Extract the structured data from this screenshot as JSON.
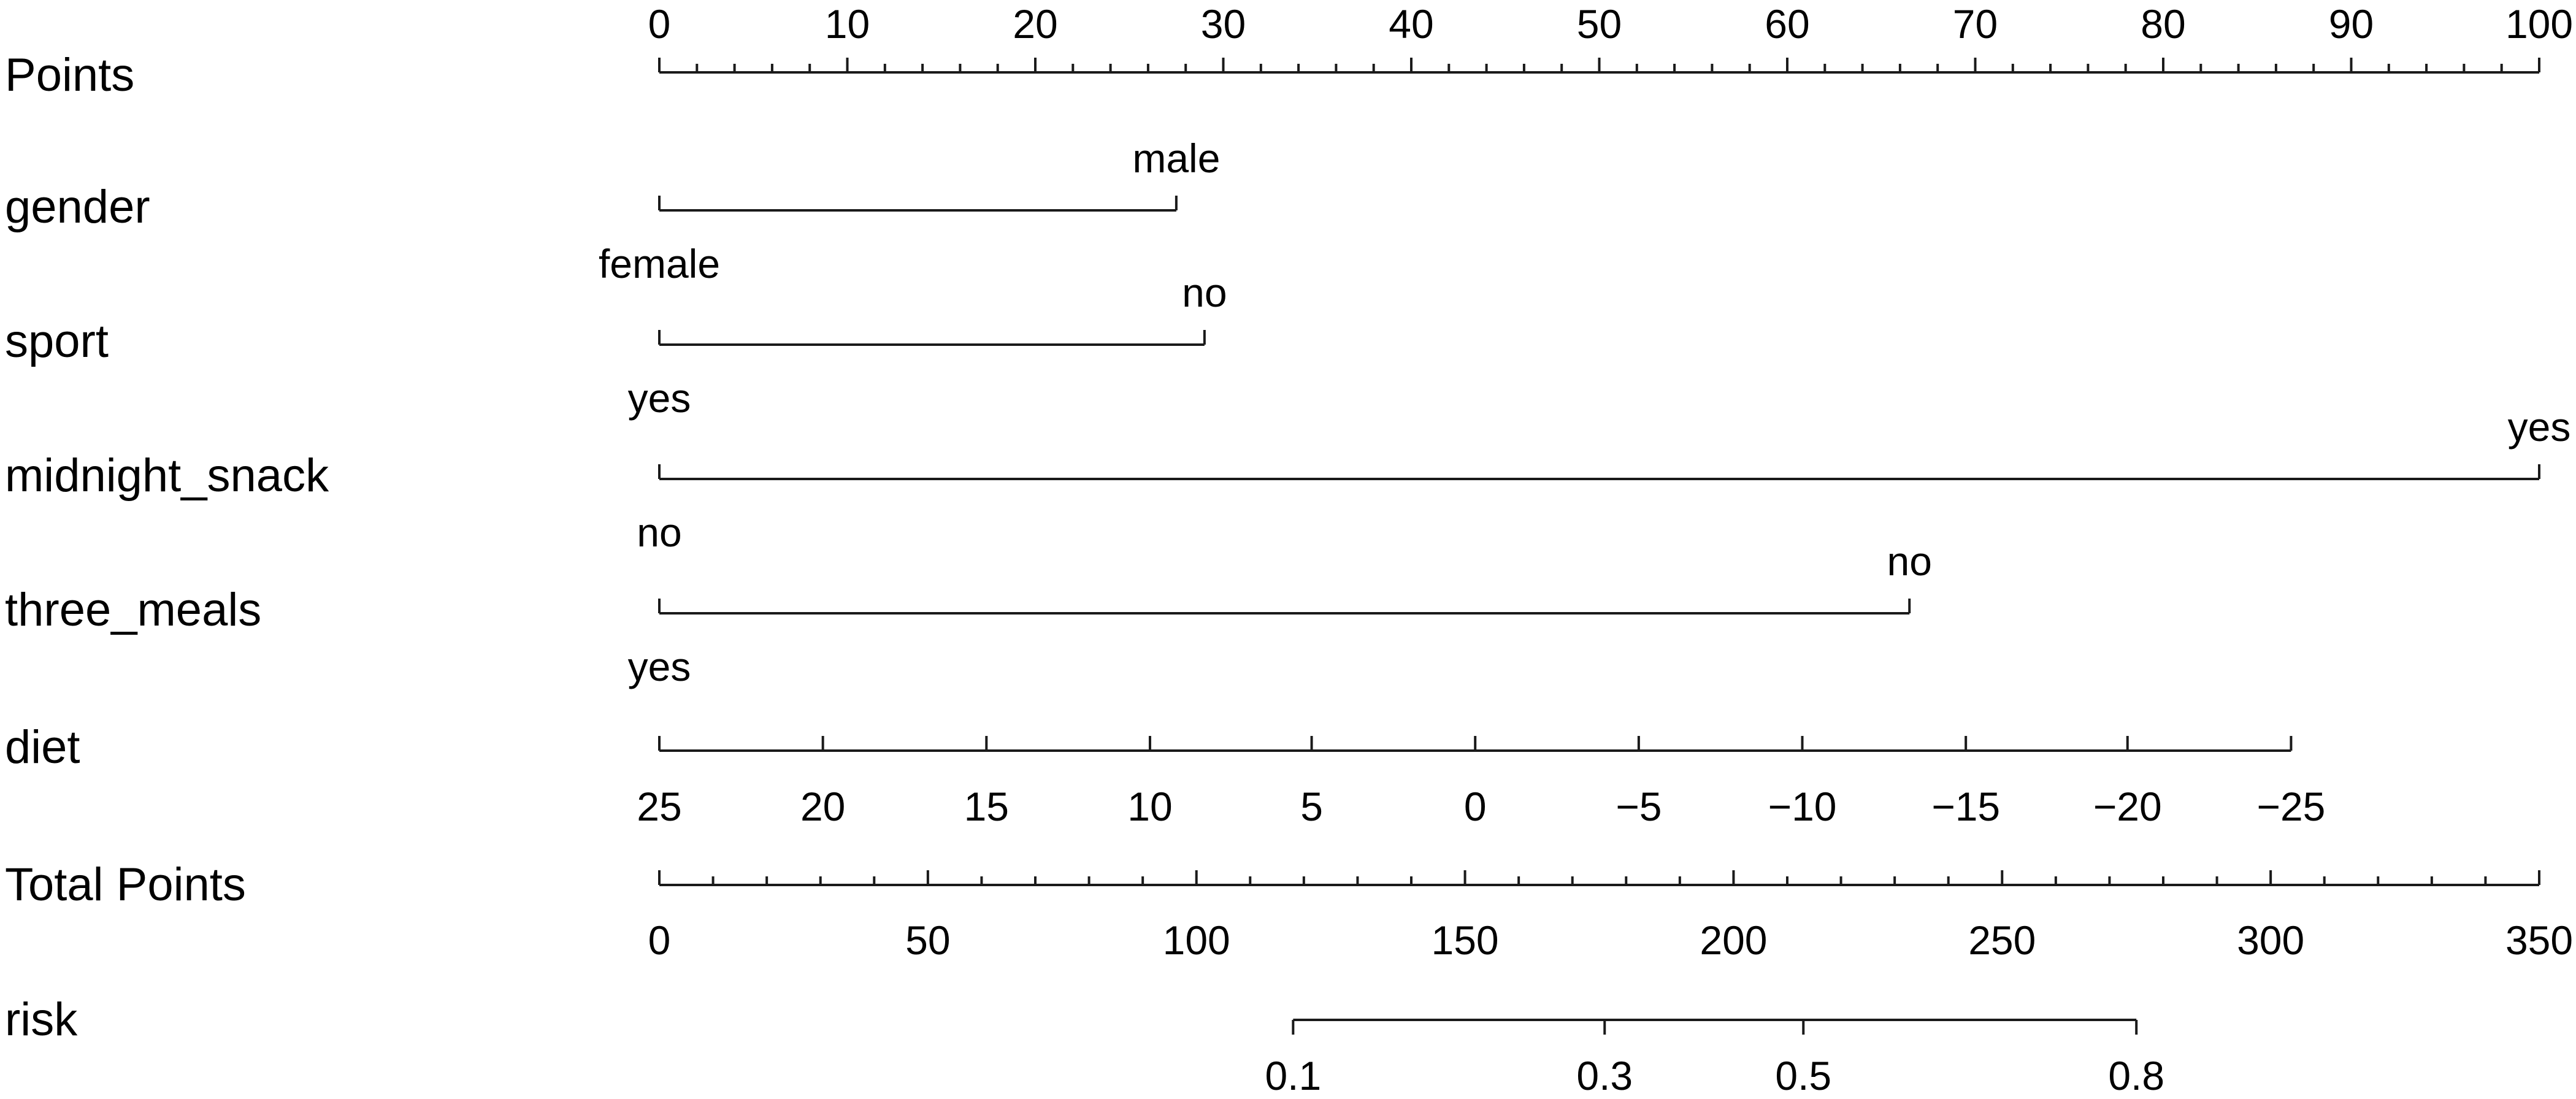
{
  "chart_data": {
    "type": "nomogram",
    "points_scale": {
      "label": "Points",
      "range": [
        0,
        100
      ],
      "ticks": [
        0,
        10,
        20,
        30,
        40,
        50,
        60,
        70,
        80,
        90,
        100
      ],
      "minor_step": 2
    },
    "variables": [
      {
        "name": "gender",
        "levels": [
          {
            "label": "female",
            "points": 0,
            "side": "below"
          },
          {
            "label": "male",
            "points": 27.5,
            "side": "above"
          }
        ]
      },
      {
        "name": "sport",
        "levels": [
          {
            "label": "yes",
            "points": 0,
            "side": "below"
          },
          {
            "label": "no",
            "points": 29,
            "side": "above"
          }
        ]
      },
      {
        "name": "midnight_snack",
        "levels": [
          {
            "label": "no",
            "points": 0,
            "side": "below"
          },
          {
            "label": "yes",
            "points": 100,
            "side": "above"
          }
        ]
      },
      {
        "name": "three_meals",
        "levels": [
          {
            "label": "yes",
            "points": 0,
            "side": "below"
          },
          {
            "label": "no",
            "points": 66.5,
            "side": "above"
          }
        ]
      }
    ],
    "diet": {
      "name": "diet",
      "ticks": [
        {
          "label": "25",
          "points": 0
        },
        {
          "label": "20",
          "points": 8.7
        },
        {
          "label": "15",
          "points": 17.4
        },
        {
          "label": "10",
          "points": 26.1
        },
        {
          "label": "5",
          "points": 34.7
        },
        {
          "label": "0",
          "points": 43.4
        },
        {
          "label": "−5",
          "points": 52.1
        },
        {
          "label": "−10",
          "points": 60.8
        },
        {
          "label": "−15",
          "points": 69.5
        },
        {
          "label": "−20",
          "points": 78.1
        },
        {
          "label": "−25",
          "points": 86.8
        }
      ]
    },
    "total_points": {
      "label": "Total Points",
      "range": [
        0,
        350
      ],
      "ticks": [
        0,
        50,
        100,
        150,
        200,
        250,
        300,
        350
      ],
      "minor_step": 10
    },
    "risk": {
      "label": "risk",
      "line_start_total": 118,
      "line_end_total": 275,
      "ticks": [
        {
          "label": "0.1",
          "total": 118
        },
        {
          "label": "0.3",
          "total": 176
        },
        {
          "label": "0.5",
          "total": 213
        },
        {
          "label": "0.8",
          "total": 275
        }
      ]
    }
  }
}
